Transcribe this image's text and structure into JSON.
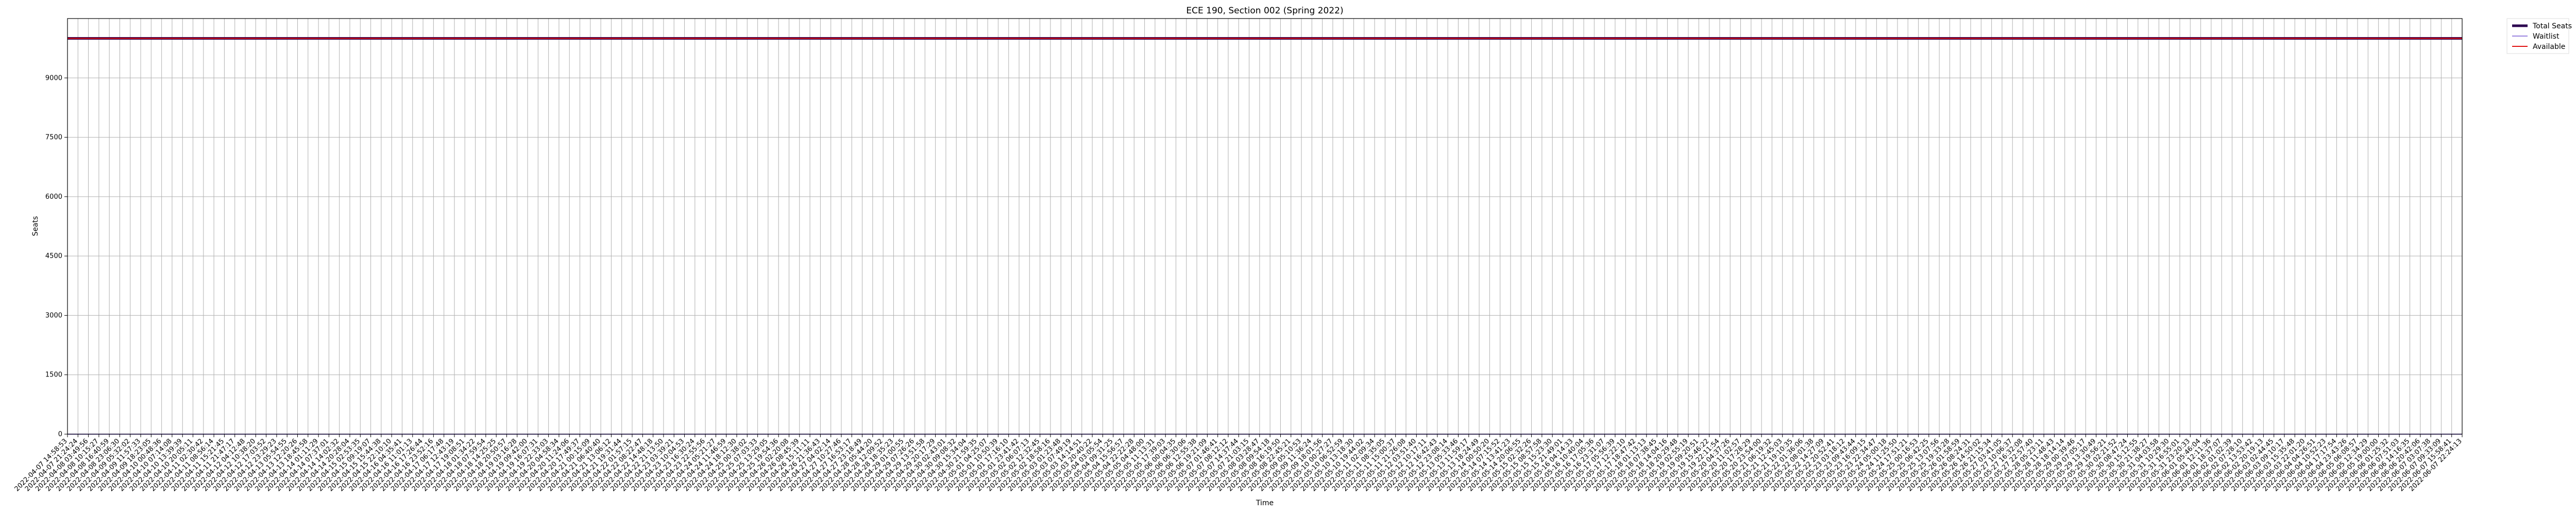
{
  "chart_data": {
    "type": "line",
    "title": "ECE 190, Section 002 (Spring 2022)",
    "xlabel": "Time",
    "ylabel": "Seats",
    "ylim": [
      0,
      10500
    ],
    "yticks": [
      0,
      1500,
      3000,
      4500,
      6000,
      7500,
      9000
    ],
    "grid": true,
    "legend_position": "outside-top-right",
    "x_start": "2022-04-07 14:58:53",
    "x_end": "2022-06-07 22:24:13",
    "x_tick_count": 230,
    "x_tick_labels_legible": [
      "2022-04-07 14:58:53",
      "2022-06-07 22:24:13"
    ],
    "series": [
      {
        "name": "Total Seats",
        "color": "#2b004f",
        "style": "solid-thick",
        "values": [
          9999,
          9999
        ]
      },
      {
        "name": "Waitlist",
        "color": "#9a84e0",
        "style": "solid",
        "values": [
          0,
          0
        ]
      },
      {
        "name": "Available",
        "color": "#e01010",
        "style": "solid",
        "values": [
          9999,
          9999
        ]
      }
    ]
  }
}
